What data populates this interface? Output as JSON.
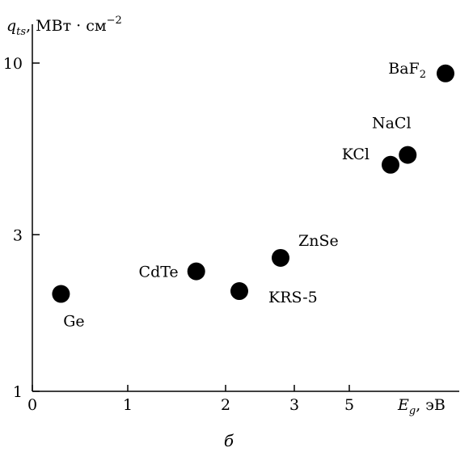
{
  "chart_data": {
    "type": "scatter",
    "title": "",
    "xlabel": {
      "symbol": "E",
      "subscript": "g",
      "unit": ", эВ"
    },
    "ylabel": {
      "symbol": "q",
      "subscript": "ts",
      "unit": ", МВт · см",
      "superscript": "−2"
    },
    "x_ticks": [
      "0",
      "1",
      "2",
      "3",
      "5"
    ],
    "y_ticks": [
      "1",
      "3",
      "10"
    ],
    "y_scale": "log",
    "ylim": [
      1,
      10
    ],
    "points": [
      {
        "label": "Ge",
        "x": 0.3,
        "y": 1.98
      },
      {
        "label": "CdTe",
        "x": 1.7,
        "y": 2.32
      },
      {
        "label": "KRS-5",
        "x": 2.2,
        "y": 2.02
      },
      {
        "label": "ZnSe",
        "x": 2.8,
        "y": 2.55
      },
      {
        "label": "KCl",
        "x": 5.6,
        "y": 4.9
      },
      {
        "label": "NaCl",
        "x": 5.85,
        "y": 5.25
      },
      {
        "label": "BaF",
        "label_sub": "2",
        "x": 6.4,
        "y": 9.3
      }
    ],
    "grid": false,
    "legend": "none",
    "marker_color": "#000000"
  },
  "caption": "б"
}
